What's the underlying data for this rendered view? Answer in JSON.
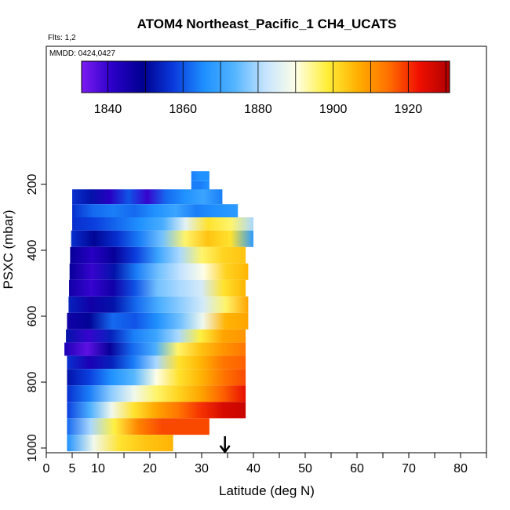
{
  "chart_data": {
    "type": "heatmap",
    "title": "ATOM4 Northeast_Pacific_1 CH4_UCATS",
    "flights_note": "Flts: 1,2",
    "dates_note": "MMDD: 0424,0427",
    "xlabel": "Latitude (deg N)",
    "ylabel": "PSXC (mbar)",
    "xlim": [
      0,
      85
    ],
    "ylim": [
      1010,
      100
    ],
    "x_ticks": [
      0,
      5,
      10,
      20,
      30,
      40,
      50,
      60,
      70,
      80
    ],
    "y_ticks": [
      200,
      400,
      600,
      800,
      1000
    ],
    "colorbar": {
      "range": [
        1833,
        1931
      ],
      "labeled_ticks": [
        1840,
        1860,
        1880,
        1900,
        1920
      ],
      "tick_lines": [
        1840,
        1850,
        1860,
        1870,
        1880,
        1890,
        1900,
        1910,
        1920,
        1930
      ],
      "colors": [
        "#7c1bf2",
        "#2a00c8",
        "#000090",
        "#0a3adc",
        "#1e90ff",
        "#55b5ff",
        "#c6e4ff",
        "#ffffe6",
        "#ffef3a",
        "#ffb000",
        "#ff7000",
        "#f01000",
        "#b00000"
      ]
    },
    "marker": {
      "type": "arrow",
      "latitude": 34.5
    },
    "profiles": [
      {
        "p": [
          160,
          190
        ],
        "lat": [
          28.0,
          31.5
        ],
        "values": [
          1864,
          1866,
          1866
        ]
      },
      {
        "p": [
          190,
          230
        ],
        "lat": [
          28.0,
          31.5
        ],
        "values": [
          1864,
          1864,
          1866
        ]
      },
      {
        "p": [
          215,
          260
        ],
        "lat": [
          5.0,
          34.0
        ],
        "values": [
          1856,
          1852,
          1842,
          1860,
          1840,
          1862,
          1866,
          1870,
          1864
        ]
      },
      {
        "p": [
          260,
          300
        ],
        "lat": [
          5.0,
          37.0
        ],
        "values": [
          1856,
          1862,
          1864,
          1862,
          1866,
          1870,
          1864,
          1866,
          1868
        ]
      },
      {
        "p": [
          300,
          340
        ],
        "lat": [
          5.0,
          40.0
        ],
        "values": [
          1856,
          1858,
          1862,
          1866,
          1872,
          1886,
          1900,
          1896,
          1880
        ]
      },
      {
        "p": [
          340,
          390
        ],
        "lat": [
          4.8,
          40.0
        ],
        "values": [
          1856,
          1850,
          1856,
          1864,
          1876,
          1896,
          1904,
          1900,
          1868
        ]
      },
      {
        "p": [
          390,
          440
        ],
        "lat": [
          4.6,
          38.5
        ],
        "values": [
          1848,
          1842,
          1848,
          1858,
          1870,
          1880,
          1896,
          1902,
          1904
        ]
      },
      {
        "p": [
          440,
          490
        ],
        "lat": [
          4.5,
          39.0
        ],
        "values": [
          1848,
          1840,
          1852,
          1864,
          1876,
          1882,
          1890,
          1902,
          1906
        ]
      },
      {
        "p": [
          490,
          540
        ],
        "lat": [
          4.4,
          38.5
        ],
        "values": [
          1846,
          1840,
          1846,
          1860,
          1876,
          1880,
          1884,
          1900,
          1906
        ]
      },
      {
        "p": [
          540,
          590
        ],
        "lat": [
          4.3,
          39.0
        ],
        "values": [
          1854,
          1846,
          1852,
          1862,
          1872,
          1878,
          1884,
          1896,
          1908
        ]
      },
      {
        "p": [
          590,
          640
        ],
        "lat": [
          4.0,
          39.0
        ],
        "values": [
          1846,
          1850,
          1862,
          1860,
          1866,
          1876,
          1888,
          1906,
          1908
        ]
      },
      {
        "p": [
          640,
          680
        ],
        "lat": [
          3.8,
          38.5
        ],
        "values": [
          1852,
          1840,
          1854,
          1864,
          1870,
          1880,
          1898,
          1908,
          1910
        ]
      },
      {
        "p": [
          680,
          720
        ],
        "lat": [
          3.5,
          38.5
        ],
        "values": [
          1844,
          1836,
          1848,
          1862,
          1872,
          1896,
          1904,
          1910,
          1914
        ]
      },
      {
        "p": [
          720,
          760
        ],
        "lat": [
          4.0,
          38.5
        ],
        "values": [
          1856,
          1844,
          1854,
          1864,
          1880,
          1900,
          1906,
          1914,
          1916
        ]
      },
      {
        "p": [
          760,
          810
        ],
        "lat": [
          4.0,
          38.5
        ],
        "values": [
          1852,
          1858,
          1866,
          1874,
          1890,
          1900,
          1906,
          1914,
          1918
        ]
      },
      {
        "p": [
          810,
          860
        ],
        "lat": [
          4.0,
          38.5
        ],
        "values": [
          1856,
          1864,
          1878,
          1888,
          1896,
          1902,
          1908,
          1916,
          1924
        ]
      },
      {
        "p": [
          860,
          910
        ],
        "lat": [
          4.0,
          38.5
        ],
        "values": [
          1858,
          1872,
          1888,
          1900,
          1908,
          1914,
          1920,
          1926,
          1928
        ]
      },
      {
        "p": [
          910,
          960
        ],
        "lat": [
          4.0,
          31.5
        ],
        "values": [
          1862,
          1880,
          1898,
          1912,
          1918,
          1918,
          1918
        ]
      },
      {
        "p": [
          960,
          1010
        ],
        "lat": [
          4.0,
          24.5
        ],
        "values": [
          1866,
          1888,
          1900,
          1904,
          1906
        ]
      }
    ]
  }
}
